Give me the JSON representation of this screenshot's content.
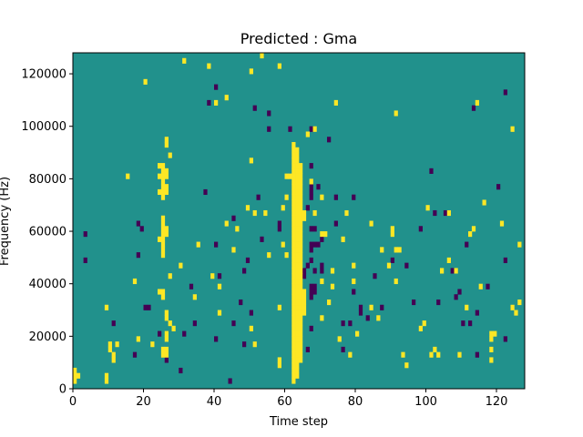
{
  "chart_data": {
    "type": "heatmap",
    "title": "Predicted : Gma",
    "xlabel": "Time step",
    "ylabel": "Frequency (Hz)",
    "xlim": [
      0,
      128
    ],
    "ylim": [
      0,
      128000
    ],
    "xticks": [
      0,
      20,
      40,
      60,
      80,
      100,
      120
    ],
    "yticks": [
      0,
      20000,
      40000,
      60000,
      80000,
      100000,
      120000
    ],
    "xtick_labels": [
      "0",
      "20",
      "40",
      "60",
      "80",
      "100",
      "120"
    ],
    "ytick_labels": [
      "0",
      "20000",
      "40000",
      "60000",
      "80000",
      "100000",
      "120000"
    ],
    "n_rows": 64,
    "colormap": "viridis",
    "background_value": "mid",
    "colors": {
      "background": "#21918c",
      "high": "#fde725",
      "low": "#440154"
    },
    "high_cells": [
      [
        0,
        1
      ],
      [
        0,
        2
      ],
      [
        0,
        3
      ],
      [
        1,
        2
      ],
      [
        9,
        1
      ],
      [
        9,
        2
      ],
      [
        9,
        15
      ],
      [
        10,
        7
      ],
      [
        10,
        8
      ],
      [
        11,
        5
      ],
      [
        11,
        6
      ],
      [
        12,
        8
      ],
      [
        15,
        40
      ],
      [
        17,
        20
      ],
      [
        18,
        9
      ],
      [
        20,
        58
      ],
      [
        22,
        8
      ],
      [
        24,
        18
      ],
      [
        24,
        28
      ],
      [
        24,
        37
      ],
      [
        24,
        40
      ],
      [
        24,
        42
      ],
      [
        25,
        6
      ],
      [
        25,
        7
      ],
      [
        25,
        17
      ],
      [
        25,
        18
      ],
      [
        25,
        25
      ],
      [
        25,
        26
      ],
      [
        25,
        27
      ],
      [
        25,
        28
      ],
      [
        25,
        29
      ],
      [
        25,
        30
      ],
      [
        25,
        31
      ],
      [
        25,
        32
      ],
      [
        25,
        36
      ],
      [
        25,
        37
      ],
      [
        25,
        38
      ],
      [
        25,
        39
      ],
      [
        25,
        40
      ],
      [
        25,
        41
      ],
      [
        25,
        42
      ],
      [
        26,
        6
      ],
      [
        26,
        7
      ],
      [
        26,
        9
      ],
      [
        26,
        10
      ],
      [
        26,
        13
      ],
      [
        26,
        14
      ],
      [
        26,
        29
      ],
      [
        26,
        30
      ],
      [
        26,
        37
      ],
      [
        26,
        38
      ],
      [
        26,
        40
      ],
      [
        26,
        41
      ],
      [
        26,
        46
      ],
      [
        26,
        47
      ],
      [
        27,
        12
      ],
      [
        27,
        21
      ],
      [
        27,
        44
      ],
      [
        28,
        11
      ],
      [
        30,
        23
      ],
      [
        31,
        62
      ],
      [
        34,
        17
      ],
      [
        35,
        27
      ],
      [
        38,
        61
      ],
      [
        39,
        21
      ],
      [
        40,
        54
      ],
      [
        41,
        14
      ],
      [
        41,
        19
      ],
      [
        43,
        31
      ],
      [
        43,
        55
      ],
      [
        45,
        26
      ],
      [
        46,
        30
      ],
      [
        49,
        34
      ],
      [
        50,
        11
      ],
      [
        50,
        43
      ],
      [
        50,
        60
      ],
      [
        51,
        8
      ],
      [
        51,
        33
      ],
      [
        53,
        63
      ],
      [
        54,
        33
      ],
      [
        55,
        25
      ],
      [
        58,
        4
      ],
      [
        58,
        5
      ],
      [
        58,
        15
      ],
      [
        58,
        61
      ],
      [
        59,
        27
      ],
      [
        59,
        34
      ],
      [
        60,
        25
      ],
      [
        60,
        36
      ],
      [
        60,
        40
      ],
      [
        61,
        40
      ],
      [
        62,
        1
      ],
      [
        62,
        2
      ],
      [
        62,
        3
      ],
      [
        62,
        4
      ],
      [
        62,
        5
      ],
      [
        62,
        6
      ],
      [
        62,
        7
      ],
      [
        62,
        8
      ],
      [
        62,
        9
      ],
      [
        62,
        10
      ],
      [
        62,
        11
      ],
      [
        62,
        12
      ],
      [
        62,
        13
      ],
      [
        62,
        14
      ],
      [
        62,
        15
      ],
      [
        62,
        16
      ],
      [
        62,
        17
      ],
      [
        62,
        18
      ],
      [
        62,
        19
      ],
      [
        62,
        20
      ],
      [
        62,
        21
      ],
      [
        62,
        22
      ],
      [
        62,
        23
      ],
      [
        62,
        24
      ],
      [
        62,
        25
      ],
      [
        62,
        26
      ],
      [
        62,
        27
      ],
      [
        62,
        28
      ],
      [
        62,
        29
      ],
      [
        62,
        30
      ],
      [
        62,
        31
      ],
      [
        62,
        32
      ],
      [
        62,
        33
      ],
      [
        62,
        34
      ],
      [
        62,
        35
      ],
      [
        62,
        36
      ],
      [
        62,
        37
      ],
      [
        62,
        38
      ],
      [
        62,
        39
      ],
      [
        62,
        40
      ],
      [
        62,
        41
      ],
      [
        62,
        42
      ],
      [
        62,
        43
      ],
      [
        62,
        44
      ],
      [
        62,
        45
      ],
      [
        62,
        46
      ],
      [
        63,
        2
      ],
      [
        63,
        3
      ],
      [
        63,
        4
      ],
      [
        63,
        5
      ],
      [
        63,
        6
      ],
      [
        63,
        7
      ],
      [
        63,
        8
      ],
      [
        63,
        9
      ],
      [
        63,
        10
      ],
      [
        63,
        11
      ],
      [
        63,
        12
      ],
      [
        63,
        13
      ],
      [
        63,
        14
      ],
      [
        63,
        15
      ],
      [
        63,
        16
      ],
      [
        63,
        17
      ],
      [
        63,
        18
      ],
      [
        63,
        19
      ],
      [
        63,
        20
      ],
      [
        63,
        21
      ],
      [
        63,
        22
      ],
      [
        63,
        23
      ],
      [
        63,
        24
      ],
      [
        63,
        25
      ],
      [
        63,
        26
      ],
      [
        63,
        27
      ],
      [
        63,
        28
      ],
      [
        63,
        29
      ],
      [
        63,
        30
      ],
      [
        63,
        31
      ],
      [
        63,
        32
      ],
      [
        63,
        33
      ],
      [
        63,
        34
      ],
      [
        63,
        35
      ],
      [
        63,
        36
      ],
      [
        63,
        37
      ],
      [
        63,
        38
      ],
      [
        63,
        39
      ],
      [
        63,
        40
      ],
      [
        63,
        41
      ],
      [
        63,
        42
      ],
      [
        63,
        43
      ],
      [
        63,
        44
      ],
      [
        63,
        45
      ],
      [
        64,
        5
      ],
      [
        64,
        6
      ],
      [
        64,
        7
      ],
      [
        64,
        8
      ],
      [
        64,
        9
      ],
      [
        64,
        10
      ],
      [
        64,
        11
      ],
      [
        64,
        12
      ],
      [
        64,
        13
      ],
      [
        64,
        14
      ],
      [
        64,
        15
      ],
      [
        64,
        16
      ],
      [
        64,
        17
      ],
      [
        64,
        18
      ],
      [
        64,
        19
      ],
      [
        64,
        20
      ],
      [
        64,
        21
      ],
      [
        64,
        22
      ],
      [
        64,
        23
      ],
      [
        64,
        24
      ],
      [
        64,
        25
      ],
      [
        64,
        26
      ],
      [
        64,
        27
      ],
      [
        64,
        28
      ],
      [
        64,
        29
      ],
      [
        64,
        30
      ],
      [
        64,
        31
      ],
      [
        64,
        32
      ],
      [
        64,
        33
      ],
      [
        64,
        34
      ],
      [
        64,
        35
      ],
      [
        64,
        36
      ],
      [
        64,
        37
      ],
      [
        64,
        38
      ],
      [
        64,
        39
      ],
      [
        64,
        40
      ],
      [
        64,
        41
      ],
      [
        64,
        42
      ],
      [
        65,
        14
      ],
      [
        65,
        15
      ],
      [
        65,
        16
      ],
      [
        65,
        17
      ],
      [
        65,
        18
      ],
      [
        65,
        32
      ],
      [
        65,
        33
      ],
      [
        66,
        48
      ],
      [
        67,
        39
      ],
      [
        68,
        33
      ],
      [
        68,
        49
      ],
      [
        70,
        13
      ],
      [
        70,
        20
      ],
      [
        70,
        29
      ],
      [
        70,
        36
      ],
      [
        71,
        29
      ],
      [
        72,
        16
      ],
      [
        73,
        19
      ],
      [
        73,
        22
      ],
      [
        74,
        54
      ],
      [
        75,
        9
      ],
      [
        76,
        28
      ],
      [
        77,
        33
      ],
      [
        78,
        6
      ],
      [
        79,
        20
      ],
      [
        79,
        23
      ],
      [
        80,
        10
      ],
      [
        84,
        15
      ],
      [
        84,
        31
      ],
      [
        86,
        13
      ],
      [
        87,
        26
      ],
      [
        89,
        23
      ],
      [
        90,
        29
      ],
      [
        90,
        30
      ],
      [
        91,
        20
      ],
      [
        91,
        26
      ],
      [
        91,
        52
      ],
      [
        92,
        26
      ],
      [
        93,
        6
      ],
      [
        94,
        4
      ],
      [
        98,
        11
      ],
      [
        99,
        12
      ],
      [
        100,
        34
      ],
      [
        101,
        6
      ],
      [
        102,
        7
      ],
      [
        103,
        6
      ],
      [
        104,
        22
      ],
      [
        106,
        24
      ],
      [
        106,
        33
      ],
      [
        108,
        22
      ],
      [
        109,
        6
      ],
      [
        111,
        15
      ],
      [
        112,
        29
      ],
      [
        113,
        30
      ],
      [
        114,
        54
      ],
      [
        115,
        19
      ],
      [
        116,
        35
      ],
      [
        118,
        5
      ],
      [
        118,
        7
      ],
      [
        118,
        9
      ],
      [
        118,
        10
      ],
      [
        119,
        10
      ],
      [
        121,
        31
      ],
      [
        124,
        15
      ],
      [
        124,
        49
      ],
      [
        125,
        14
      ],
      [
        126,
        27
      ],
      [
        126,
        16
      ]
    ],
    "low_cells": [
      [
        3,
        24
      ],
      [
        3,
        29
      ],
      [
        11,
        12
      ],
      [
        17,
        6
      ],
      [
        18,
        25
      ],
      [
        18,
        31
      ],
      [
        19,
        30
      ],
      [
        20,
        15
      ],
      [
        21,
        15
      ],
      [
        24,
        10
      ],
      [
        26,
        5
      ],
      [
        30,
        3
      ],
      [
        31,
        10
      ],
      [
        33,
        19
      ],
      [
        34,
        12
      ],
      [
        37,
        37
      ],
      [
        38,
        54
      ],
      [
        40,
        9
      ],
      [
        40,
        27
      ],
      [
        40,
        57
      ],
      [
        41,
        21
      ],
      [
        44,
        1
      ],
      [
        45,
        12
      ],
      [
        45,
        32
      ],
      [
        47,
        16
      ],
      [
        48,
        8
      ],
      [
        48,
        22
      ],
      [
        49,
        24
      ],
      [
        50,
        14
      ],
      [
        51,
        53
      ],
      [
        52,
        36
      ],
      [
        53,
        28
      ],
      [
        55,
        49
      ],
      [
        55,
        52
      ],
      [
        58,
        30
      ],
      [
        58,
        31
      ],
      [
        61,
        49
      ],
      [
        65,
        21
      ],
      [
        65,
        22
      ],
      [
        66,
        7
      ],
      [
        66,
        23
      ],
      [
        66,
        34
      ],
      [
        67,
        11
      ],
      [
        67,
        17
      ],
      [
        67,
        18
      ],
      [
        67,
        19
      ],
      [
        67,
        24
      ],
      [
        67,
        26
      ],
      [
        67,
        27
      ],
      [
        67,
        30
      ],
      [
        67,
        36
      ],
      [
        67,
        37
      ],
      [
        67,
        38
      ],
      [
        67,
        42
      ],
      [
        67,
        49
      ],
      [
        68,
        18
      ],
      [
        68,
        19
      ],
      [
        68,
        22
      ],
      [
        68,
        27
      ],
      [
        68,
        30
      ],
      [
        69,
        27
      ],
      [
        69,
        38
      ],
      [
        70,
        22
      ],
      [
        70,
        23
      ],
      [
        70,
        28
      ],
      [
        72,
        47
      ],
      [
        74,
        31
      ],
      [
        74,
        36
      ],
      [
        76,
        7
      ],
      [
        76,
        12
      ],
      [
        78,
        12
      ],
      [
        79,
        18
      ],
      [
        79,
        36
      ],
      [
        81,
        14
      ],
      [
        81,
        15
      ],
      [
        83,
        13
      ],
      [
        85,
        21
      ],
      [
        87,
        15
      ],
      [
        90,
        24
      ],
      [
        94,
        23
      ],
      [
        96,
        16
      ],
      [
        98,
        30
      ],
      [
        101,
        41
      ],
      [
        102,
        33
      ],
      [
        103,
        16
      ],
      [
        105,
        33
      ],
      [
        107,
        22
      ],
      [
        108,
        17
      ],
      [
        109,
        18
      ],
      [
        110,
        12
      ],
      [
        111,
        27
      ],
      [
        112,
        12
      ],
      [
        113,
        53
      ],
      [
        114,
        6
      ],
      [
        114,
        14
      ],
      [
        117,
        19
      ],
      [
        120,
        38
      ],
      [
        122,
        9
      ],
      [
        122,
        24
      ],
      [
        122,
        56
      ]
    ]
  }
}
